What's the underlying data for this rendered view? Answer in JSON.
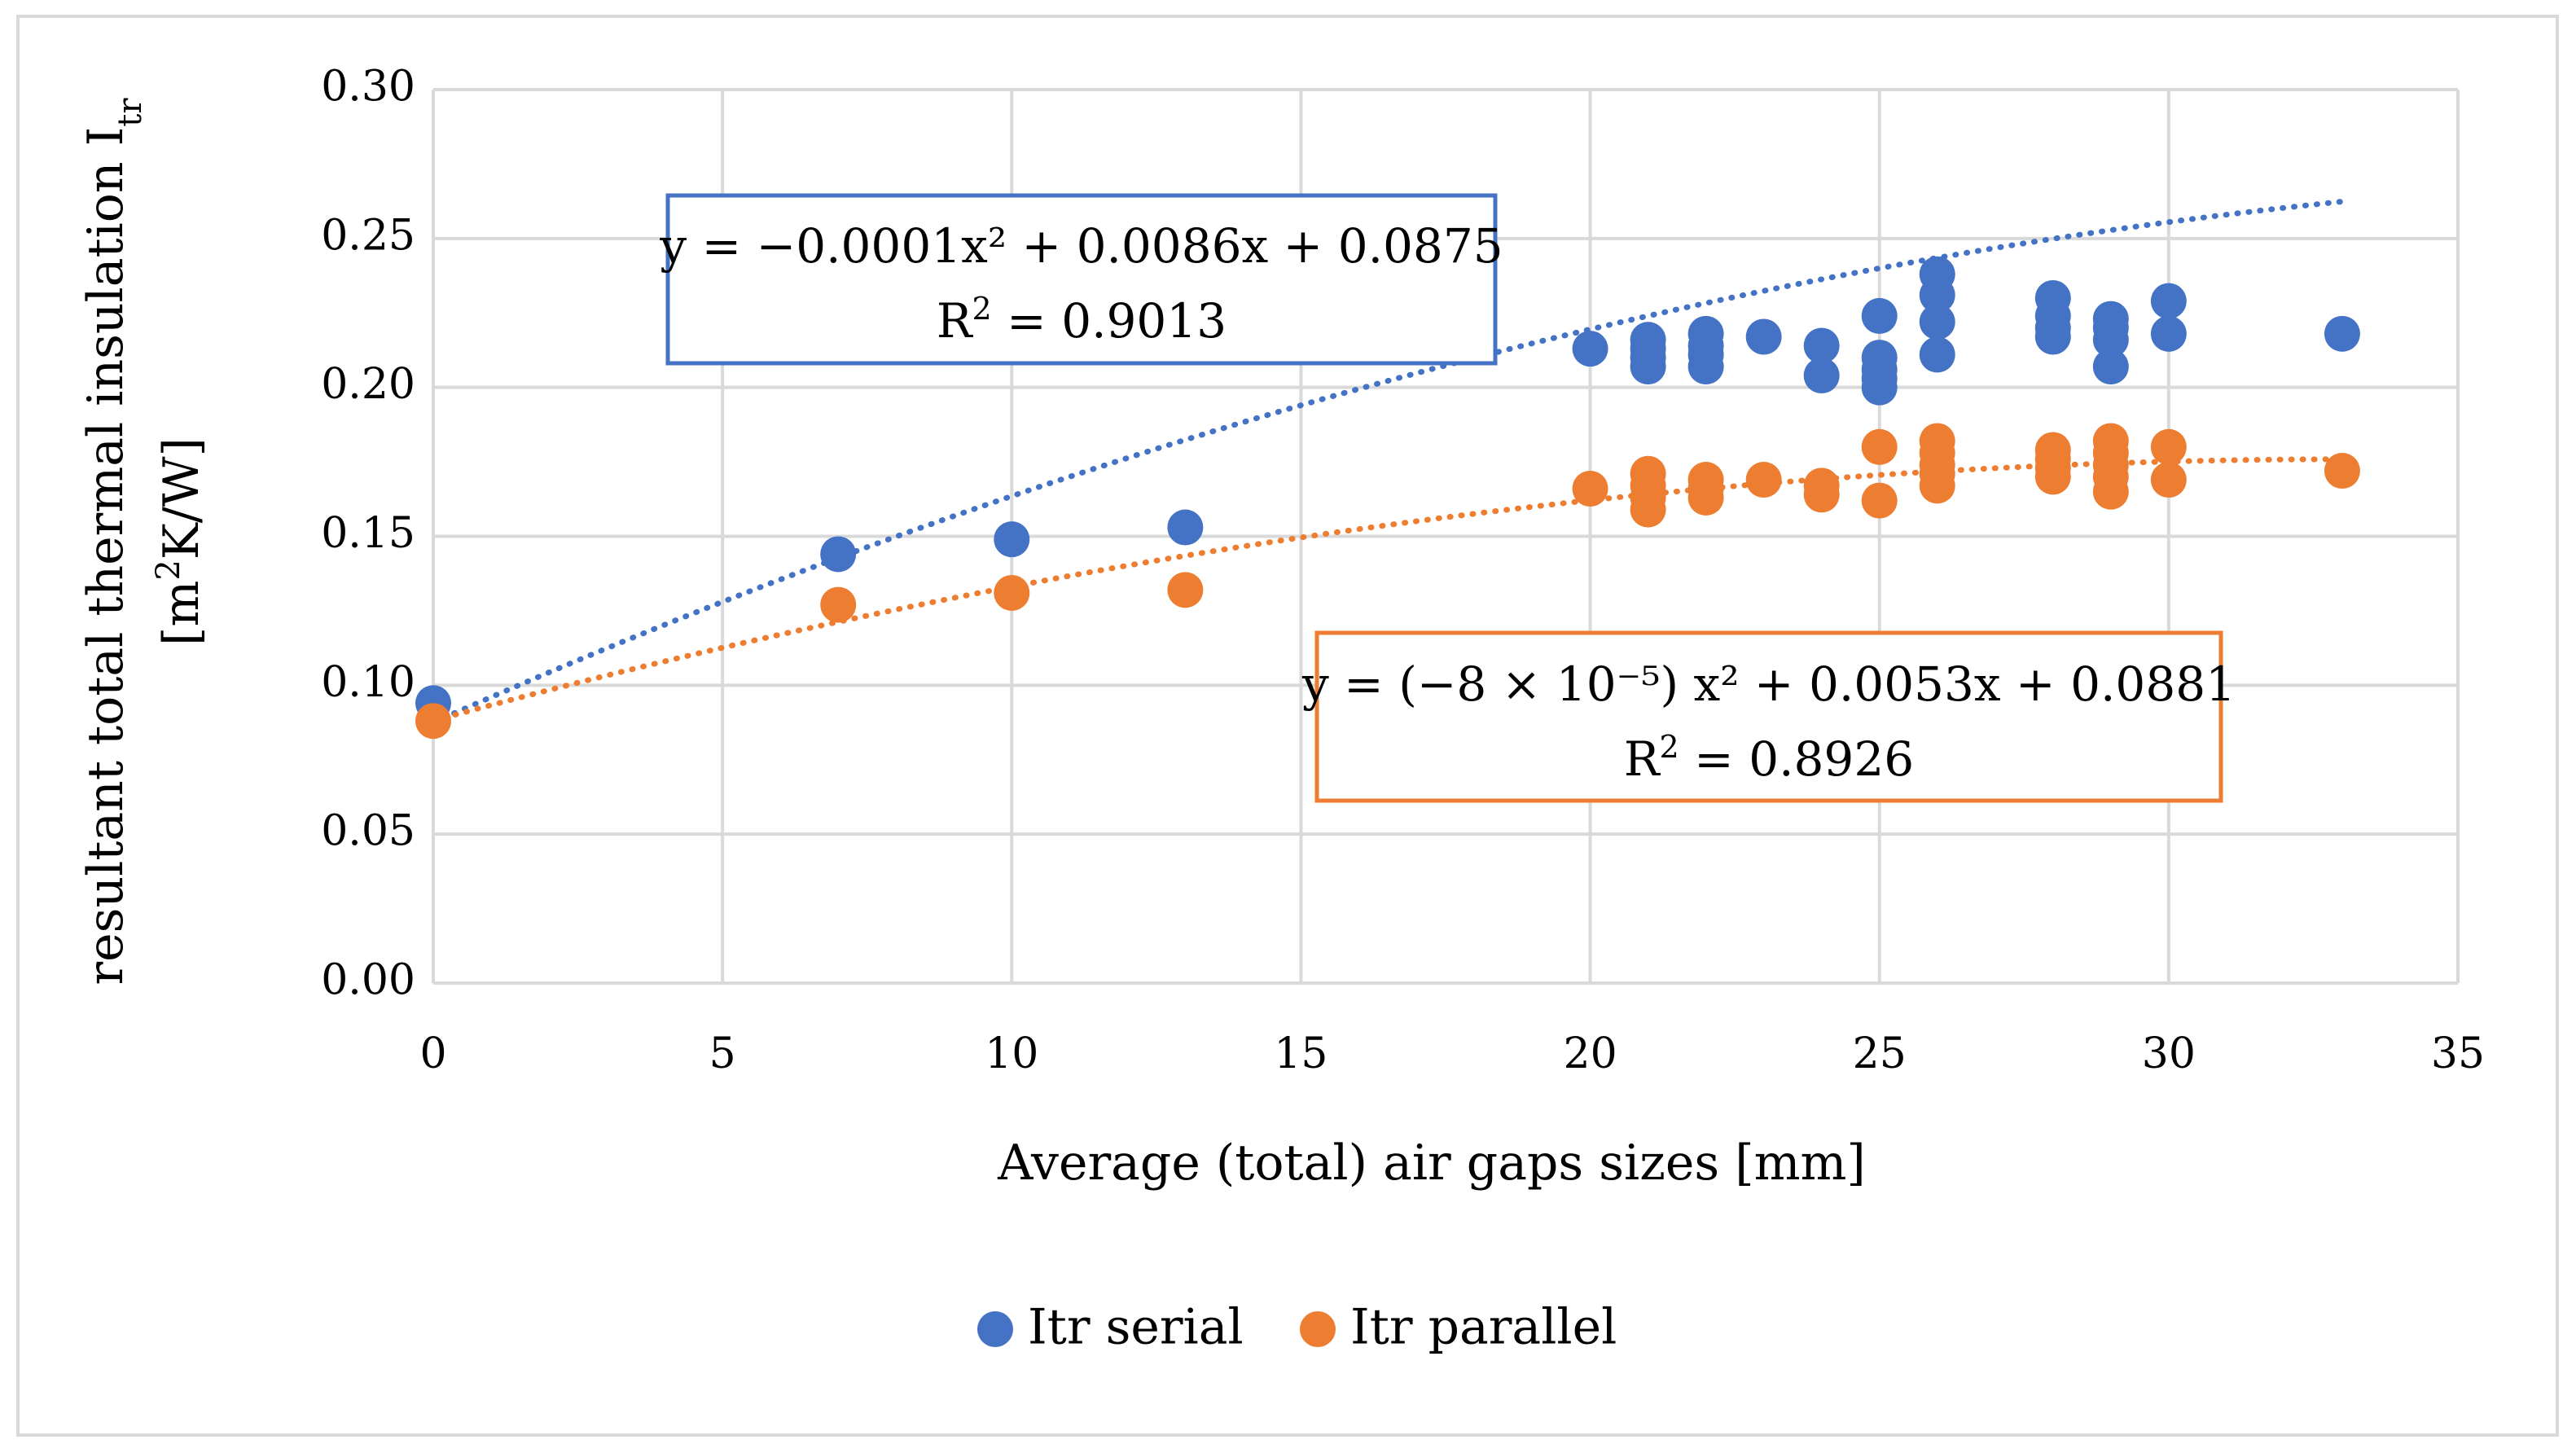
{
  "chart_data": {
    "type": "scatter",
    "title": "",
    "xlabel": "Average (total) air gaps sizes [mm]",
    "ylabel": {
      "line1_main": "resultant total thermal insulation I",
      "line1_sub": "tr",
      "line2_pre": "[m",
      "line2_sup": "2",
      "line2_post": "K/W]"
    },
    "xlim": [
      0,
      35
    ],
    "ylim": [
      0,
      0.3
    ],
    "x_ticks": [
      "0",
      "5",
      "10",
      "15",
      "20",
      "25",
      "30",
      "35"
    ],
    "y_ticks": [
      "0.00",
      "0.05",
      "0.10",
      "0.15",
      "0.20",
      "0.25",
      "0.30"
    ],
    "grid": true,
    "legend_position": "bottom",
    "series": [
      {
        "name": "Itr serial",
        "color": "#4472C4",
        "points": [
          [
            0,
            0.094
          ],
          [
            7,
            0.144
          ],
          [
            10,
            0.149
          ],
          [
            13,
            0.153
          ],
          [
            20,
            0.213
          ],
          [
            21,
            0.216
          ],
          [
            21,
            0.213
          ],
          [
            21,
            0.21
          ],
          [
            21,
            0.207
          ],
          [
            22,
            0.218
          ],
          [
            22,
            0.214
          ],
          [
            22,
            0.211
          ],
          [
            22,
            0.207
          ],
          [
            23,
            0.217
          ],
          [
            24,
            0.214
          ],
          [
            24,
            0.204
          ],
          [
            25,
            0.224
          ],
          [
            25,
            0.21
          ],
          [
            25,
            0.206
          ],
          [
            25,
            0.203
          ],
          [
            25,
            0.2
          ],
          [
            26,
            0.238
          ],
          [
            26,
            0.231
          ],
          [
            26,
            0.222
          ],
          [
            26,
            0.211
          ],
          [
            28,
            0.23
          ],
          [
            28,
            0.224
          ],
          [
            28,
            0.22
          ],
          [
            28,
            0.217
          ],
          [
            29,
            0.223
          ],
          [
            29,
            0.22
          ],
          [
            29,
            0.216
          ],
          [
            29,
            0.207
          ],
          [
            30,
            0.229
          ],
          [
            30,
            0.218
          ],
          [
            33,
            0.218
          ]
        ],
        "trend": {
          "a": -0.0001,
          "b": 0.0086,
          "c": 0.0875
        }
      },
      {
        "name": "Itr parallel",
        "color": "#ED7D31",
        "points": [
          [
            0,
            0.088
          ],
          [
            7,
            0.127
          ],
          [
            10,
            0.131
          ],
          [
            13,
            0.132
          ],
          [
            20,
            0.166
          ],
          [
            21,
            0.171
          ],
          [
            21,
            0.167
          ],
          [
            21,
            0.163
          ],
          [
            21,
            0.159
          ],
          [
            22,
            0.169
          ],
          [
            22,
            0.166
          ],
          [
            22,
            0.163
          ],
          [
            23,
            0.169
          ],
          [
            24,
            0.167
          ],
          [
            24,
            0.164
          ],
          [
            25,
            0.18
          ],
          [
            25,
            0.162
          ],
          [
            26,
            0.182
          ],
          [
            26,
            0.178
          ],
          [
            26,
            0.174
          ],
          [
            26,
            0.171
          ],
          [
            26,
            0.167
          ],
          [
            28,
            0.179
          ],
          [
            28,
            0.176
          ],
          [
            28,
            0.173
          ],
          [
            28,
            0.17
          ],
          [
            29,
            0.182
          ],
          [
            29,
            0.178
          ],
          [
            29,
            0.174
          ],
          [
            29,
            0.17
          ],
          [
            29,
            0.165
          ],
          [
            30,
            0.18
          ],
          [
            30,
            0.169
          ],
          [
            33,
            0.172
          ]
        ],
        "trend": {
          "a": -8e-05,
          "b": 0.0053,
          "c": 0.0881
        }
      }
    ],
    "annotations": [
      {
        "name": "serial-equation",
        "line1": "y = −0.0001x² + 0.0086x + 0.0875",
        "line2_pre": "R",
        "line2_sup": "2",
        "line2_post": " = 0.9013",
        "color": "#4472C4"
      },
      {
        "name": "parallel-equation",
        "line1": "y = (−8 × 10⁻⁵) x² + 0.0053x + 0.0881",
        "line2_pre": "R",
        "line2_sup": "2",
        "line2_post": " = 0.8926",
        "color": "#ED7D31"
      }
    ]
  }
}
